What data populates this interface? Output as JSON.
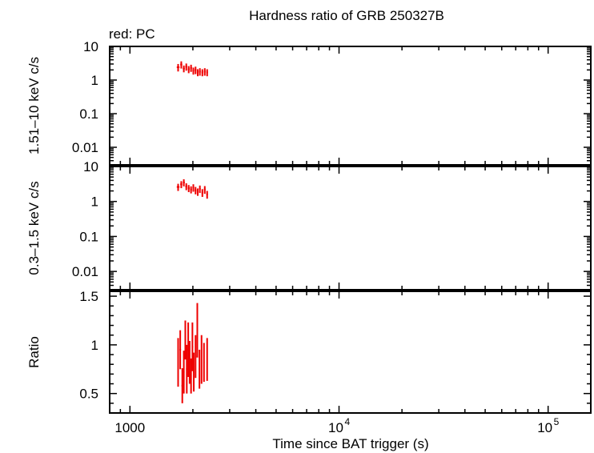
{
  "title": "Hardness ratio of GRB 250327B",
  "legend": "red: PC",
  "xlabel": "Time since BAT trigger (s)",
  "x_tick_labels": [
    {
      "value": 1000,
      "label": "1000",
      "sup": ""
    },
    {
      "value": 10000,
      "label": "10",
      "sup": "4"
    },
    {
      "value": 100000,
      "label": "10",
      "sup": "5"
    }
  ],
  "colors": {
    "series": "#ee0000",
    "axes": "#000000"
  },
  "chart_data": [
    {
      "type": "scatter",
      "ylabel": "1.51–10 keV c/s",
      "yscale": "log",
      "xscale": "log",
      "ylim": [
        0.003,
        10
      ],
      "xlim": [
        800,
        160000
      ],
      "y_tick_labels": [
        {
          "value": 10,
          "label": "10"
        },
        {
          "value": 1,
          "label": "1"
        },
        {
          "value": 0.1,
          "label": "0.1"
        },
        {
          "value": 0.01,
          "label": "0.01"
        }
      ],
      "series": [
        {
          "color": "#ee0000",
          "points": [
            [
              1700,
              2.4,
              0.6,
              50
            ],
            [
              1760,
              2.9,
              0.7,
              40
            ],
            [
              1810,
              2.2,
              0.5,
              40
            ],
            [
              1860,
              2.5,
              0.6,
              40
            ],
            [
              1910,
              2.1,
              0.5,
              40
            ],
            [
              1960,
              2.3,
              0.55,
              40
            ],
            [
              2010,
              1.9,
              0.45,
              40
            ],
            [
              2060,
              2.0,
              0.5,
              40
            ],
            [
              2110,
              1.7,
              0.4,
              40
            ],
            [
              2160,
              1.8,
              0.45,
              40
            ],
            [
              2220,
              1.7,
              0.4,
              40
            ],
            [
              2280,
              1.8,
              0.45,
              40
            ],
            [
              2340,
              1.7,
              0.4,
              40
            ]
          ]
        }
      ]
    },
    {
      "type": "scatter",
      "ylabel": "0.3–1.5 keV c/s",
      "yscale": "log",
      "xscale": "log",
      "ylim": [
        0.003,
        10
      ],
      "xlim": [
        800,
        160000
      ],
      "y_tick_labels": [
        {
          "value": 10,
          "label": "10"
        },
        {
          "value": 1,
          "label": "1"
        },
        {
          "value": 0.1,
          "label": "0.1"
        },
        {
          "value": 0.01,
          "label": "0.01"
        }
      ],
      "series": [
        {
          "color": "#ee0000",
          "points": [
            [
              1700,
              2.6,
              0.6,
              50
            ],
            [
              1760,
              3.1,
              0.7,
              40
            ],
            [
              1810,
              3.5,
              0.8,
              40
            ],
            [
              1860,
              2.7,
              0.6,
              40
            ],
            [
              1910,
              2.4,
              0.55,
              40
            ],
            [
              1960,
              2.2,
              0.5,
              40
            ],
            [
              2010,
              2.5,
              0.6,
              40
            ],
            [
              2060,
              2.1,
              0.5,
              40
            ],
            [
              2110,
              1.9,
              0.45,
              40
            ],
            [
              2160,
              2.3,
              0.55,
              40
            ],
            [
              2220,
              1.8,
              0.45,
              40
            ],
            [
              2280,
              2.2,
              0.55,
              40
            ],
            [
              2340,
              1.6,
              0.4,
              40
            ]
          ]
        }
      ]
    },
    {
      "type": "scatter",
      "ylabel": "Ratio",
      "yscale": "linear",
      "xscale": "log",
      "ylim": [
        0.3,
        1.55
      ],
      "xlim": [
        800,
        160000
      ],
      "y_tick_labels": [
        {
          "value": 1.5,
          "label": "1.5"
        },
        {
          "value": 1,
          "label": "1"
        },
        {
          "value": 0.5,
          "label": "0.5"
        }
      ],
      "series": [
        {
          "color": "#ee0000",
          "points": [
            [
              1700,
              0.82,
              0.25,
              30
            ],
            [
              1740,
              0.95,
              0.2,
              30
            ],
            [
              1780,
              0.58,
              0.18,
              30
            ],
            [
              1810,
              0.72,
              0.22,
              30
            ],
            [
              1840,
              1.05,
              0.2,
              30
            ],
            [
              1870,
              0.75,
              0.25,
              30
            ],
            [
              1900,
              0.95,
              0.28,
              30
            ],
            [
              1930,
              0.82,
              0.22,
              30
            ],
            [
              1960,
              0.68,
              0.18,
              30
            ],
            [
              1990,
              0.98,
              0.25,
              30
            ],
            [
              2020,
              0.72,
              0.2,
              30
            ],
            [
              2060,
              0.88,
              0.22,
              30
            ],
            [
              2100,
              1.15,
              0.28,
              30
            ],
            [
              2150,
              0.75,
              0.2,
              30
            ],
            [
              2200,
              0.85,
              0.25,
              30
            ],
            [
              2260,
              0.82,
              0.2,
              30
            ],
            [
              2340,
              0.85,
              0.22,
              30
            ]
          ]
        }
      ]
    }
  ]
}
